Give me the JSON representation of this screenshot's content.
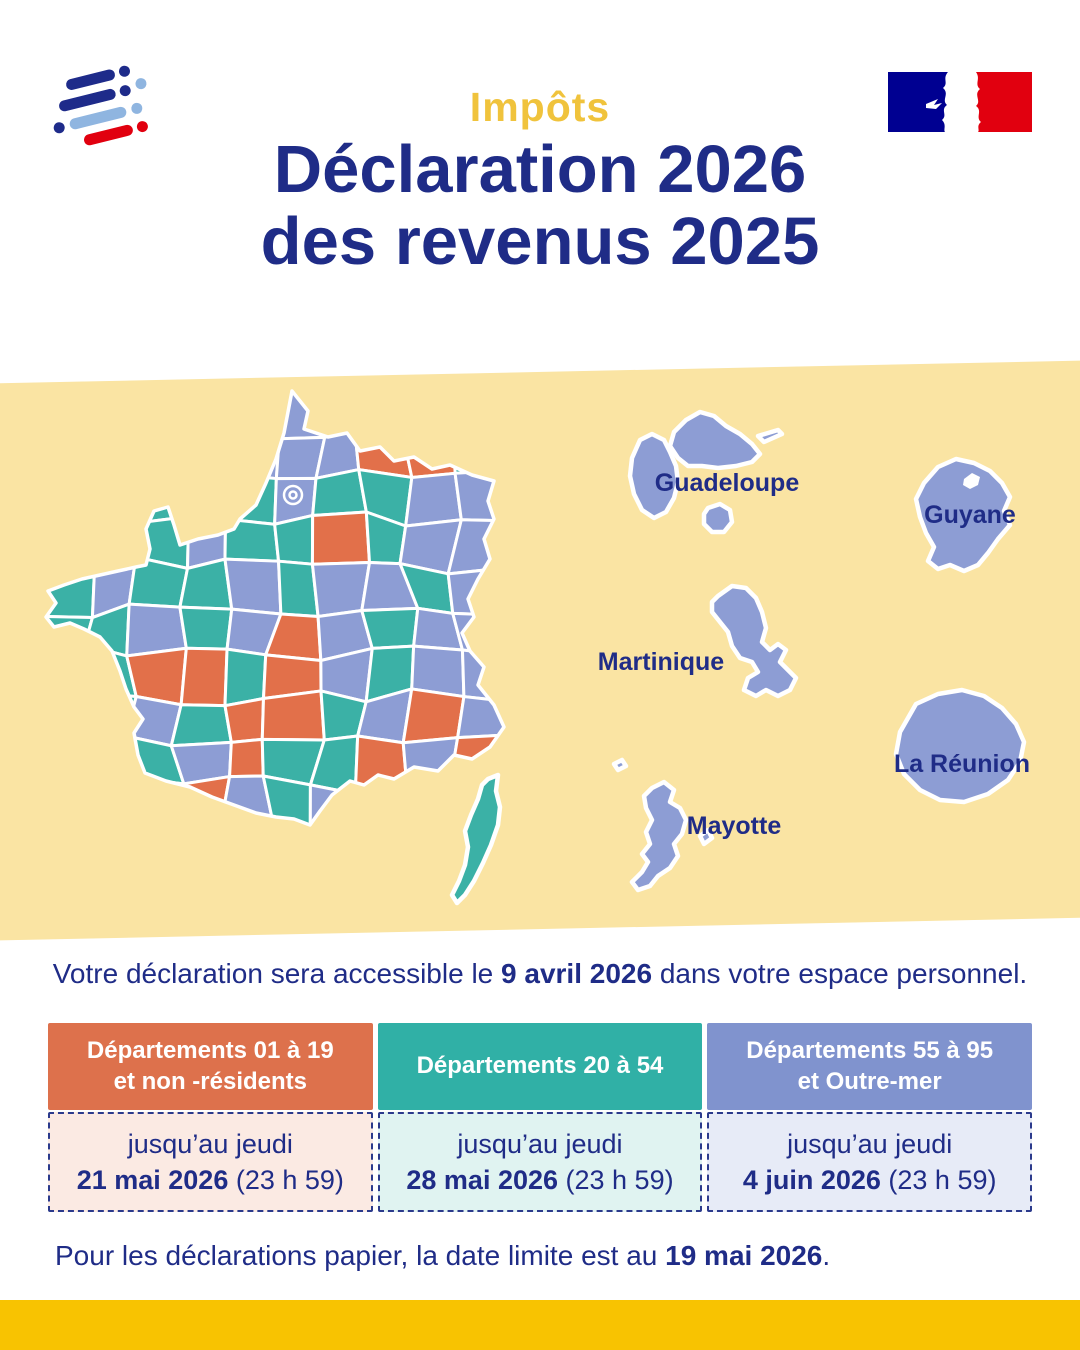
{
  "header": {
    "kicker": "Impôts",
    "kicker_color": "#F0C33C",
    "title_line1": "Déclaration 2026",
    "title_line2": "des revenus 2025",
    "navy": "#1f2c87",
    "logo_colors": {
      "navy": "#1e2b8a",
      "light_blue": "#8fb5e0",
      "red": "#e1000f"
    },
    "republic_colors": {
      "blue": "#000091",
      "red": "#e1000f"
    }
  },
  "map": {
    "band_color": "#FAE4A3",
    "colors": {
      "teal": "#3BB1A6",
      "blue": "#8D9DD4",
      "orange": "#E2704A",
      "outline": "#FFFFFF",
      "label": "#1f2c87"
    },
    "tile_grid": [
      "BBBBBBBBBB",
      "TTTBBBBOOT",
      "TTTOTBTTBB",
      "TTTBTTOTBB",
      "TBTTBTBBTB",
      "TTBTBOBTBB",
      "BTOOTOBTBB",
      "TTBTOOTBOB",
      "TTTBOTTOBO",
      "TBTOBTBTBB"
    ],
    "territories": [
      {
        "name": "Guadeloupe"
      },
      {
        "name": "Guyane"
      },
      {
        "name": "Martinique"
      },
      {
        "name": "La Réunion"
      },
      {
        "name": "Mayotte"
      }
    ]
  },
  "notice": {
    "prefix": "Votre déclaration sera accessible le ",
    "highlight": "9 avril 2026",
    "suffix": " dans votre espace personnel."
  },
  "table": {
    "columns": [
      {
        "header_line1": "Départements 01 à 19",
        "header_line2": "et non -résidents",
        "accent": "#DD714C",
        "cell_bg": "#FBEAE3",
        "line1": "jusqu’au jeudi",
        "date": "21 mai 2026",
        "time": " (23 h 59)"
      },
      {
        "header_line1": "Départements 20 à 54",
        "header_line2": "",
        "accent": "#30B0A6",
        "cell_bg": "#E0F3F1",
        "line1": "jusqu’au jeudi",
        "date": "28 mai 2026",
        "time": " (23 h 59)"
      },
      {
        "header_line1": "Départements 55 à 95",
        "header_line2": "et Outre-mer",
        "accent": "#8093CE",
        "cell_bg": "#E7EBF7",
        "line1": "jusqu’au jeudi",
        "date": "4 juin 2026",
        "time": " (23 h 59)"
      }
    ]
  },
  "footer": {
    "prefix": "Pour les déclarations papier, la date limite est au ",
    "highlight": "19 mai 2026",
    "suffix": ".",
    "bar_color": "#F8C301"
  }
}
